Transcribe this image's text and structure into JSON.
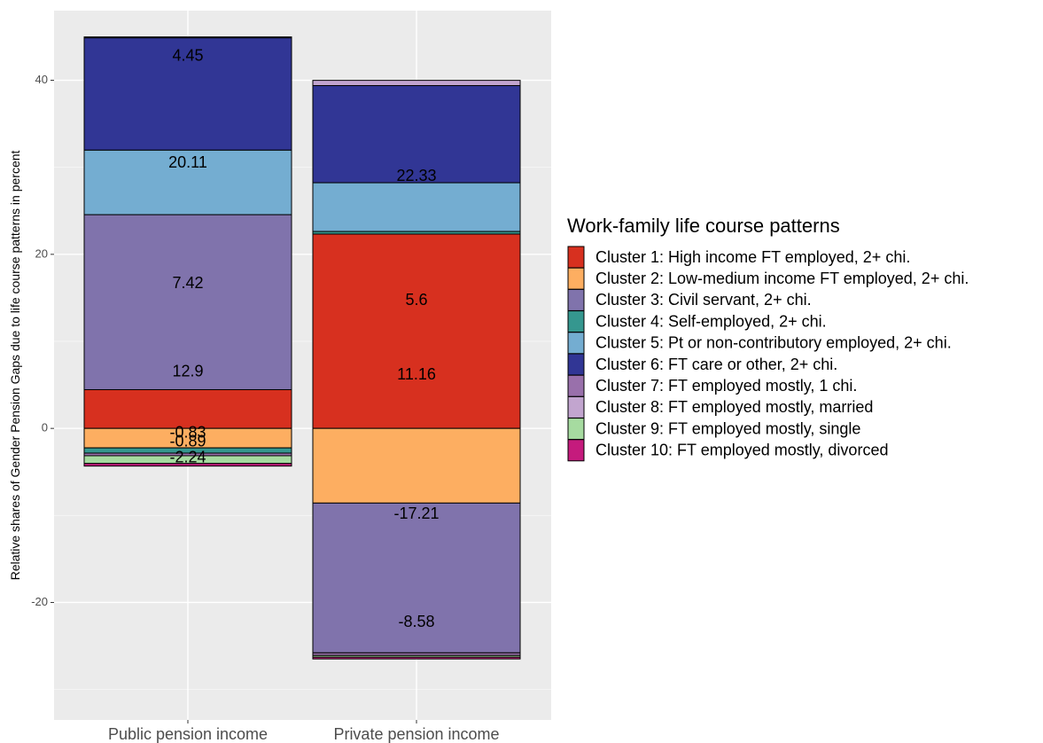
{
  "chart_data": {
    "type": "bar",
    "stacked": true,
    "ylabel": "Relative shares of  Gender Pension Gaps due to life course patterns in percent",
    "xlabel": "",
    "ylim": [
      -33.5,
      48
    ],
    "yticks": [
      -20,
      0,
      20,
      40
    ],
    "grid": true,
    "legend_placement": "right",
    "legend_title": "Work-family life course patterns",
    "categories": [
      "Public pension income",
      "Private pension income"
    ],
    "series": [
      {
        "name": "Cluster 1: High income FT employed, 2+ chi.",
        "color": "#d7301f",
        "values": [
          4.45,
          22.33
        ]
      },
      {
        "name": "Cluster 2: Low-medium income FT employed, 2+ chi.",
        "color": "#fdae61",
        "values": [
          -2.24,
          -8.58
        ]
      },
      {
        "name": "Cluster 3: Civil servant, 2+ chi.",
        "color": "#8073ac",
        "values": [
          20.11,
          -17.21
        ]
      },
      {
        "name": "Cluster 4: Self-employed, 2+ chi.",
        "color": "#35978f",
        "values": [
          -0.6,
          0.3
        ]
      },
      {
        "name": "Cluster 5: Pt or non-contributory employed, 2+ chi.",
        "color": "#74add1",
        "values": [
          7.42,
          5.6
        ]
      },
      {
        "name": "Cluster 6: FT care or other, 2+ chi.",
        "color": "#313695",
        "values": [
          12.9,
          11.16
        ]
      },
      {
        "name": "Cluster 7: FT employed mostly, 1 chi.",
        "color": "#9970ab",
        "values": [
          -0.3,
          -0.3
        ]
      },
      {
        "name": "Cluster 8: FT employed mostly, married",
        "color": "#c2a5cf",
        "values": [
          0.1,
          0.6
        ]
      },
      {
        "name": "Cluster 9: FT employed mostly, single",
        "color": "#a6dba0",
        "values": [
          -0.89,
          -0.2
        ]
      },
      {
        "name": "Cluster 10: FT employed mostly, divorced",
        "color": "#c51b7d",
        "values": [
          -0.3,
          -0.2
        ]
      }
    ],
    "data_labels": [
      [
        {
          "value": 4.45,
          "text": "4.45"
        },
        {
          "value": 20.11,
          "text": "20.11"
        },
        {
          "value": 7.42,
          "text": "7.42"
        },
        {
          "value": 12.9,
          "text": "12.9"
        },
        {
          "value": -0.83,
          "text": "-0.83"
        },
        {
          "value": -0.89,
          "text": "-0.89"
        },
        {
          "value": -2.24,
          "text": "-2.24"
        }
      ],
      [
        {
          "value": 22.33,
          "text": "22.33"
        },
        {
          "value": 5.6,
          "text": "5.6"
        },
        {
          "value": 11.16,
          "text": "11.16"
        },
        {
          "value": -17.21,
          "text": "-17.21"
        },
        {
          "value": -8.58,
          "text": "-8.58"
        }
      ]
    ]
  }
}
